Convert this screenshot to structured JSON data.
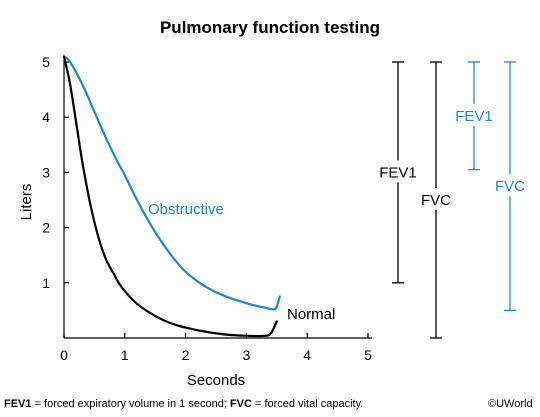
{
  "chart_data": {
    "type": "line",
    "title": "Pulmonary function testing",
    "xlabel": "Seconds",
    "ylabel": "Liters",
    "xlim": [
      0,
      5
    ],
    "ylim": [
      0,
      5
    ],
    "x_ticks": [
      "0",
      "1",
      "2",
      "3",
      "4",
      "5"
    ],
    "y_ticks": [
      "1",
      "2",
      "3",
      "4",
      "5"
    ],
    "grid": false,
    "series": [
      {
        "name": "Obstructive",
        "color": "#1a8bc4",
        "points": [
          [
            0,
            5.1
          ],
          [
            0.1,
            5.0
          ],
          [
            0.3,
            4.6
          ],
          [
            0.5,
            4.1
          ],
          [
            0.7,
            3.6
          ],
          [
            0.9,
            3.15
          ],
          [
            1.0,
            2.95
          ],
          [
            1.2,
            2.5
          ],
          [
            1.4,
            2.1
          ],
          [
            1.6,
            1.75
          ],
          [
            1.8,
            1.45
          ],
          [
            2.0,
            1.2
          ],
          [
            2.3,
            0.95
          ],
          [
            2.6,
            0.78
          ],
          [
            3.0,
            0.63
          ],
          [
            3.3,
            0.55
          ],
          [
            3.45,
            0.52
          ],
          [
            3.5,
            0.57
          ],
          [
            3.55,
            0.75
          ]
        ]
      },
      {
        "name": "Normal",
        "color": "#000000",
        "points": [
          [
            0,
            5.1
          ],
          [
            0.1,
            4.6
          ],
          [
            0.2,
            3.9
          ],
          [
            0.3,
            3.2
          ],
          [
            0.4,
            2.6
          ],
          [
            0.5,
            2.1
          ],
          [
            0.6,
            1.7
          ],
          [
            0.7,
            1.4
          ],
          [
            0.8,
            1.2
          ],
          [
            0.9,
            1.0
          ],
          [
            1.0,
            0.85
          ],
          [
            1.2,
            0.62
          ],
          [
            1.5,
            0.4
          ],
          [
            1.8,
            0.25
          ],
          [
            2.2,
            0.14
          ],
          [
            2.6,
            0.07
          ],
          [
            3.0,
            0.04
          ],
          [
            3.3,
            0.04
          ],
          [
            3.4,
            0.08
          ],
          [
            3.5,
            0.3
          ]
        ]
      }
    ],
    "brackets": [
      {
        "label": "FEV1",
        "color": "#000000",
        "top": 5.0,
        "bottom": 1.0
      },
      {
        "label": "FVC",
        "color": "#000000",
        "top": 5.0,
        "bottom": 0.0
      },
      {
        "label": "FEV1",
        "color": "#1a8bc4",
        "top": 5.0,
        "bottom": 3.05
      },
      {
        "label": "FVC",
        "color": "#1a8bc4",
        "top": 5.0,
        "bottom": 0.5
      }
    ]
  },
  "footnote": {
    "fev1_abbr": "FEV1",
    "fev1_def": " = forced expiratory volume in 1 second; ",
    "fvc_abbr": "FVC",
    "fvc_def": " = forced vital capacity."
  },
  "credit": "©UWorld"
}
